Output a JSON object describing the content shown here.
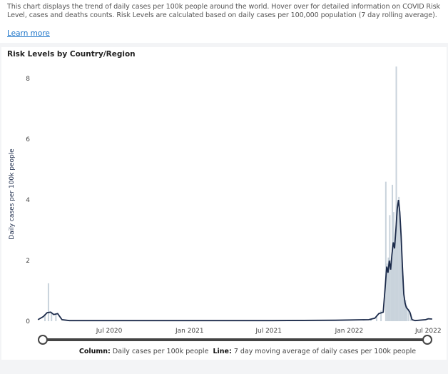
{
  "description": "This chart displays the trend of daily cases per 100k people around the world. Hover over for detailed information on COVID Risk Level, cases and deaths counts. Risk Levels are calculated based on daily cases per 100,000 population (7 day rolling average).",
  "learn_more": "Learn more",
  "section_title": "Risk Levels by Country/Region",
  "legend": {
    "column_label": "Column:",
    "column_text": "Daily cases per 100k people",
    "line_label": "Line:",
    "line_text": "7 day moving average of daily cases per 100k people"
  },
  "colors": {
    "line": "#1b2a4a",
    "column": "#c9d3dc",
    "slider": "#444444"
  },
  "chart_data": {
    "type": "bar+line",
    "ylabel": "Daily cases per 100k people",
    "ylim": [
      0,
      8.5
    ],
    "yticks": [
      0,
      2,
      4,
      6,
      8
    ],
    "xlim": [
      "2020-01-18",
      "2022-07-12"
    ],
    "xticks": [
      {
        "date": "2020-07-01",
        "label": "Jul 2020"
      },
      {
        "date": "2021-01-01",
        "label": "Jan 2021"
      },
      {
        "date": "2021-07-01",
        "label": "Jul 2021"
      },
      {
        "date": "2022-01-01",
        "label": "Jan 2022"
      },
      {
        "date": "2022-07-01",
        "label": "Jul 2022"
      }
    ],
    "grid": false,
    "line": [
      [
        "2020-01-20",
        0.05
      ],
      [
        "2020-02-01",
        0.15
      ],
      [
        "2020-02-10",
        0.28
      ],
      [
        "2020-02-18",
        0.3
      ],
      [
        "2020-02-25",
        0.22
      ],
      [
        "2020-03-05",
        0.25
      ],
      [
        "2020-03-15",
        0.05
      ],
      [
        "2020-04-01",
        0.02
      ],
      [
        "2020-07-01",
        0.02
      ],
      [
        "2021-01-01",
        0.02
      ],
      [
        "2021-07-01",
        0.02
      ],
      [
        "2021-12-01",
        0.03
      ],
      [
        "2022-02-15",
        0.05
      ],
      [
        "2022-03-01",
        0.1
      ],
      [
        "2022-03-10",
        0.25
      ],
      [
        "2022-03-20",
        0.3
      ],
      [
        "2022-03-25",
        1.2
      ],
      [
        "2022-03-28",
        1.8
      ],
      [
        "2022-03-31",
        1.6
      ],
      [
        "2022-04-03",
        2.0
      ],
      [
        "2022-04-06",
        1.7
      ],
      [
        "2022-04-09",
        2.2
      ],
      [
        "2022-04-12",
        2.6
      ],
      [
        "2022-04-15",
        2.4
      ],
      [
        "2022-04-18",
        3.0
      ],
      [
        "2022-04-21",
        3.7
      ],
      [
        "2022-04-24",
        4.0
      ],
      [
        "2022-04-27",
        3.6
      ],
      [
        "2022-04-30",
        2.8
      ],
      [
        "2022-05-03",
        1.8
      ],
      [
        "2022-05-06",
        0.9
      ],
      [
        "2022-05-09",
        0.6
      ],
      [
        "2022-05-12",
        0.45
      ],
      [
        "2022-05-15",
        0.4
      ],
      [
        "2022-05-20",
        0.3
      ],
      [
        "2022-05-25",
        0.05
      ],
      [
        "2022-06-01",
        0.02
      ],
      [
        "2022-06-25",
        0.05
      ],
      [
        "2022-07-01",
        0.08
      ],
      [
        "2022-07-10",
        0.07
      ]
    ],
    "columns": [
      [
        "2020-02-05",
        0.2
      ],
      [
        "2020-02-13",
        1.25
      ],
      [
        "2020-02-20",
        0.3
      ],
      [
        "2020-03-01",
        0.25
      ],
      [
        "2022-02-20",
        0.08
      ],
      [
        "2022-03-05",
        0.2
      ],
      [
        "2022-03-15",
        0.35
      ],
      [
        "2022-03-26",
        4.6
      ],
      [
        "2022-03-29",
        1.9
      ],
      [
        "2022-04-01",
        2.1
      ],
      [
        "2022-04-04",
        3.5
      ],
      [
        "2022-04-07",
        2.0
      ],
      [
        "2022-04-10",
        4.5
      ],
      [
        "2022-04-13",
        3.6
      ],
      [
        "2022-04-16",
        2.6
      ],
      [
        "2022-04-19",
        8.4
      ],
      [
        "2022-04-22",
        3.8
      ],
      [
        "2022-04-25",
        4.1
      ],
      [
        "2022-04-28",
        3.3
      ],
      [
        "2022-05-01",
        2.4
      ],
      [
        "2022-05-04",
        1.5
      ],
      [
        "2022-05-07",
        0.8
      ],
      [
        "2022-05-10",
        0.7
      ],
      [
        "2022-05-13",
        0.5
      ],
      [
        "2022-05-17",
        0.4
      ],
      [
        "2022-05-22",
        0.25
      ]
    ]
  }
}
